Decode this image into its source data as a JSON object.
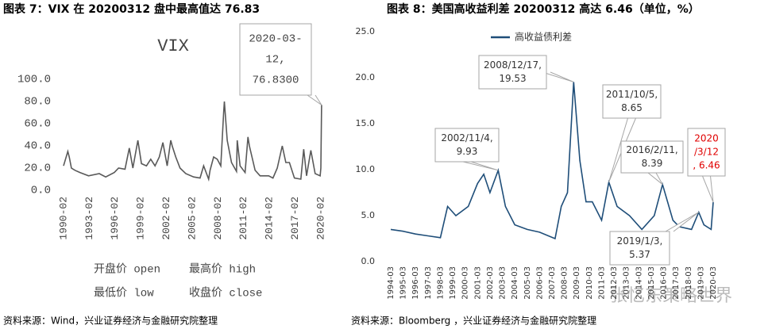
{
  "chart_data": [
    {
      "type": "line",
      "heading": "图表 7：VIX 在 20200312 盘中最高值达 76.83",
      "title": "VIX",
      "source": "资料来源：Wind，兴业证券经济与金融研究院整理",
      "legend": [
        "开盘价 open",
        "最高价 high",
        "最低价 low",
        "收盘价 close"
      ],
      "xticks": [
        "1990-02",
        "1993-02",
        "1996-02",
        "1999-02",
        "2002-02",
        "2005-02",
        "2008-02",
        "2011-02",
        "2014-02",
        "2017-02",
        "2020-02"
      ],
      "ylim": [
        0,
        100
      ],
      "yticks": [
        {
          "value": 0,
          "label": "0.0"
        },
        {
          "value": 20,
          "label": "20.0"
        },
        {
          "value": 40,
          "label": "40.0"
        },
        {
          "value": 60,
          "label": "60.0"
        },
        {
          "value": 80,
          "label": "80.0"
        },
        {
          "value": 100,
          "label": "100.0"
        }
      ],
      "series": [
        {
          "color": "#595959",
          "x": [
            "1990-02",
            "1990-08",
            "1990-10",
            "1991-01",
            "1991-06",
            "1992-01",
            "1993-01",
            "1994-04",
            "1995-01",
            "1996-01",
            "1996-07",
            "1997-04",
            "1997-10",
            "1998-03",
            "1998-10",
            "1999-03",
            "1999-10",
            "2000-04",
            "2000-10",
            "2001-04",
            "2001-09",
            "2002-03",
            "2002-08",
            "2002-10",
            "2003-03",
            "2003-09",
            "2004-05",
            "2005-04",
            "2006-01",
            "2006-06",
            "2007-01",
            "2007-03",
            "2007-08",
            "2008-01",
            "2008-06",
            "2008-10",
            "2008-11",
            "2009-03",
            "2009-09",
            "2010-04",
            "2010-05",
            "2010-09",
            "2011-04",
            "2011-08",
            "2011-10",
            "2012-06",
            "2013-01",
            "2014-01",
            "2014-07",
            "2015-01",
            "2015-08",
            "2016-01",
            "2016-06",
            "2017-01",
            "2017-10",
            "2018-02",
            "2018-06",
            "2018-12",
            "2019-06",
            "2020-01",
            "2020-02",
            "2020-03"
          ],
          "values": [
            22,
            35,
            30,
            20,
            18,
            16,
            13,
            15,
            12,
            16,
            20,
            19,
            38,
            20,
            45,
            24,
            22,
            28,
            22,
            30,
            43,
            22,
            45,
            40,
            30,
            20,
            15,
            12,
            11,
            22,
            10,
            18,
            30,
            28,
            22,
            70,
            80,
            45,
            25,
            17,
            45,
            22,
            16,
            48,
            40,
            18,
            13,
            13,
            11,
            20,
            40,
            25,
            25,
            11,
            10,
            37,
            13,
            36,
            15,
            13,
            20,
            76.83
          ]
        }
      ],
      "annotations": [
        [
          "2020-03-",
          "12,",
          "76.8300"
        ]
      ]
    },
    {
      "type": "line",
      "heading": "图表 8：美国高收益利差 20200312 高达 6.46（单位，%）",
      "source": "资料来源：Bloomberg ，兴业证券经济与金融研究院整理",
      "watermark": "张忆东策略世界",
      "xticks": [
        "1994-03",
        "1995-03",
        "1996-03",
        "1997-03",
        "1998-03",
        "1999-03",
        "2000-03",
        "2001-03",
        "2002-03",
        "2003-03",
        "2004-03",
        "2005-03",
        "2006-03",
        "2007-03",
        "2008-03",
        "2009-03",
        "2010-03",
        "2011-03",
        "2012-03",
        "2013-03",
        "2014-03",
        "2015-03",
        "2016-03",
        "2017-03",
        "2018-03",
        "2019-03",
        "2020-03"
      ],
      "ylim": [
        0,
        25
      ],
      "yticks": [
        {
          "value": 0,
          "label": "0.0"
        },
        {
          "value": 5,
          "label": "5.0"
        },
        {
          "value": 10,
          "label": "10.0"
        },
        {
          "value": 15,
          "label": "15.0"
        },
        {
          "value": 20,
          "label": "20.0"
        },
        {
          "value": 25,
          "label": "25.0"
        }
      ],
      "series": [
        {
          "name": "高收益债利差",
          "color": "#1f4e79",
          "x": [
            "1994-03",
            "1995-03",
            "1996-03",
            "1997-03",
            "1998-03",
            "1998-10",
            "1999-06",
            "2000-06",
            "2001-03",
            "2001-09",
            "2002-03",
            "2002-11",
            "2003-06",
            "2004-03",
            "2005-03",
            "2006-03",
            "2007-06",
            "2007-12",
            "2008-06",
            "2008-12",
            "2009-06",
            "2009-12",
            "2010-06",
            "2011-03",
            "2011-10",
            "2012-06",
            "2013-06",
            "2014-06",
            "2015-06",
            "2016-02",
            "2016-12",
            "2017-06",
            "2018-06",
            "2019-01",
            "2019-06",
            "2020-01",
            "2020-03"
          ],
          "values": [
            3.5,
            3.3,
            3.0,
            2.8,
            2.6,
            6.0,
            5.0,
            6.0,
            8.5,
            9.5,
            7.5,
            9.93,
            6.0,
            4.0,
            3.5,
            3.2,
            2.5,
            6.0,
            7.5,
            19.53,
            11.0,
            6.5,
            6.5,
            4.5,
            8.65,
            6.0,
            5.0,
            3.5,
            5.0,
            8.39,
            4.5,
            3.8,
            3.5,
            5.37,
            4.0,
            3.5,
            6.46
          ]
        }
      ],
      "annotations": [
        [
          "2002/11/4,",
          "9.93"
        ],
        [
          "2008/12/17,",
          "19.53"
        ],
        [
          "2011/10/5,",
          "8.65"
        ],
        [
          "2016/2/11,",
          "8.39"
        ],
        [
          "2019/1/3,",
          "5.37"
        ],
        [
          "2020",
          "/3/12",
          ", 6.46"
        ]
      ]
    }
  ]
}
